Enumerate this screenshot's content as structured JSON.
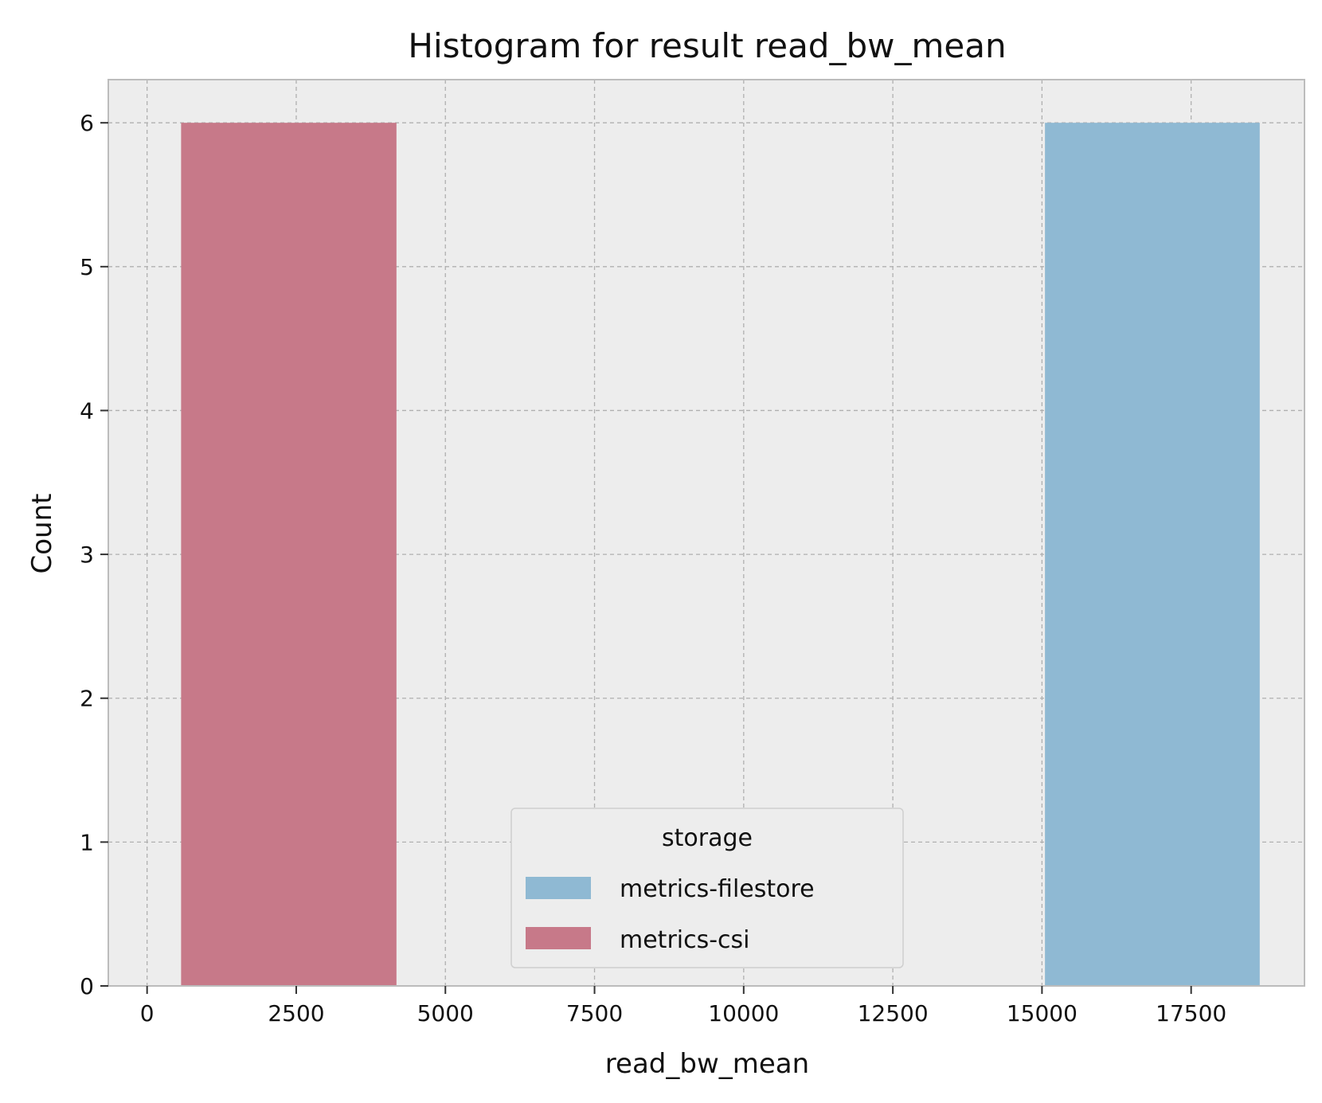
{
  "chart_data": {
    "type": "bar",
    "title": "Histogram for result read_bw_mean",
    "xlabel": "read_bw_mean",
    "ylabel": "Count",
    "xlim": [
      -650,
      19400
    ],
    "ylim": [
      0,
      6.3
    ],
    "xticks": [
      0,
      2500,
      5000,
      7500,
      10000,
      12500,
      15000,
      17500
    ],
    "yticks": [
      0,
      1,
      2,
      3,
      4,
      5,
      6
    ],
    "grid": true,
    "legend": {
      "title": "storage",
      "placement": "bottom-center"
    },
    "series": [
      {
        "name": "metrics-filestore",
        "color": "#8fb9d3",
        "bins": [
          {
            "x0": 15050,
            "x1": 18650,
            "count": 6
          }
        ]
      },
      {
        "name": "metrics-csi",
        "color": "#c77989",
        "bins": [
          {
            "x0": 570,
            "x1": 4180,
            "count": 6
          }
        ]
      }
    ],
    "colors": {
      "background": "#ededed",
      "frame": "#bcbcbc"
    }
  }
}
